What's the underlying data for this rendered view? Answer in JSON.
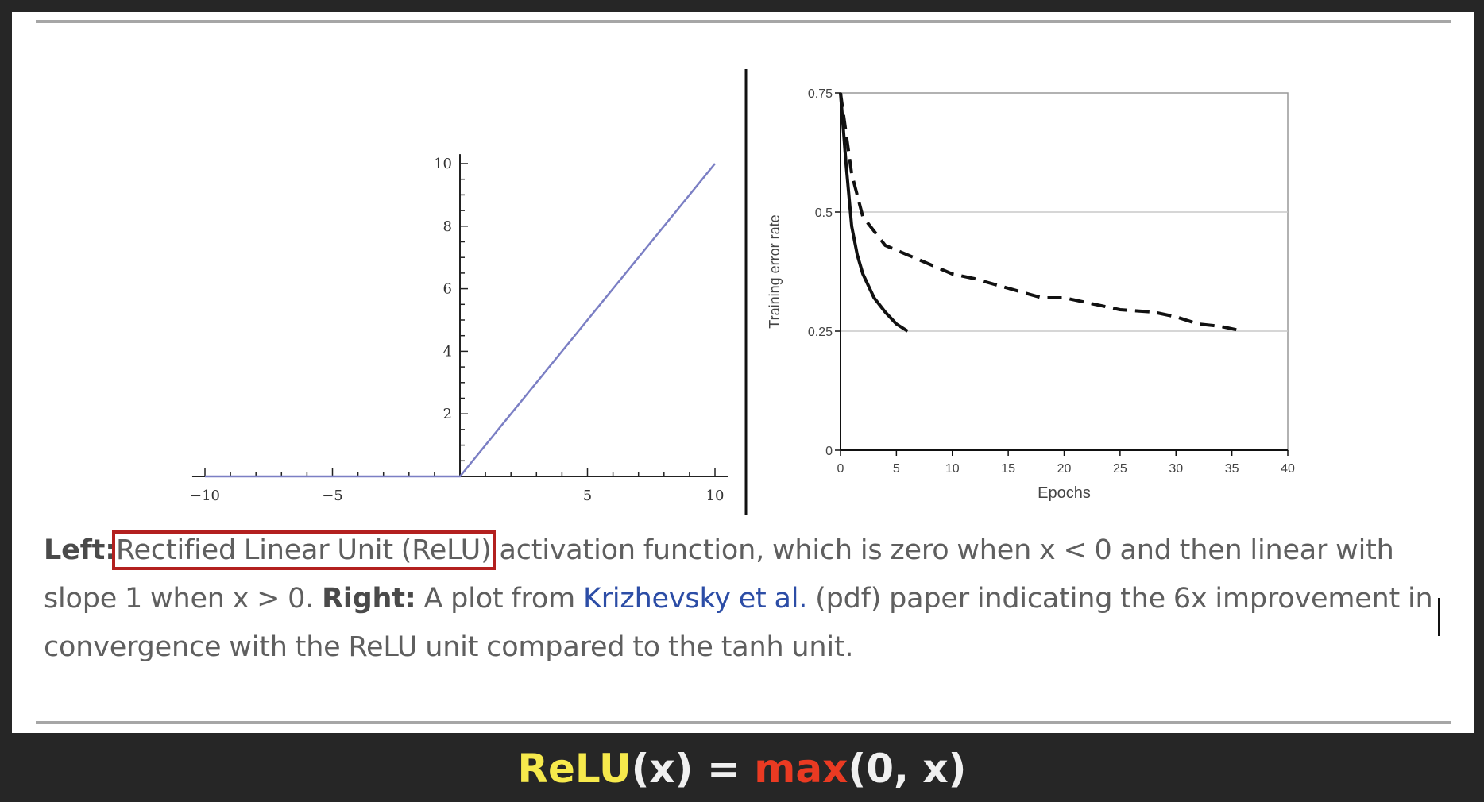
{
  "left_plot": {
    "x_ticks": [
      "−10",
      "−5",
      "5",
      "10"
    ],
    "y_ticks": [
      "2",
      "4",
      "6",
      "8",
      "10"
    ],
    "line_color": "#7b7fc4"
  },
  "chart_data": [
    {
      "type": "line",
      "x": [
        -10,
        0,
        10
      ],
      "series": [
        {
          "values": [
            0,
            0,
            10
          ]
        }
      ],
      "xlim": [
        -10.5,
        10.5
      ],
      "ylim": [
        0,
        10.3
      ],
      "xticks": [
        -10,
        -5,
        5,
        10
      ],
      "yticks": [
        2,
        4,
        6,
        8,
        10
      ]
    },
    {
      "type": "line",
      "xlabel": "Epochs",
      "ylabel": "Training error rate",
      "xlim": [
        0,
        40
      ],
      "ylim": [
        0,
        0.75
      ],
      "xticks": [
        0,
        5,
        10,
        15,
        20,
        25,
        30,
        35,
        40
      ],
      "yticks": [
        "0",
        "0.25",
        "0.5",
        "0.75"
      ],
      "grid": "horizontal at 0.25 and 0.5",
      "series": [
        {
          "style": "solid",
          "x": [
            0,
            0.5,
            1,
            1.5,
            2,
            3,
            4,
            5,
            6
          ],
          "values": [
            0.75,
            0.6,
            0.47,
            0.41,
            0.37,
            0.32,
            0.29,
            0.265,
            0.25
          ]
        },
        {
          "style": "dashed",
          "x": [
            0,
            1,
            2,
            4,
            6,
            8,
            10,
            12,
            15,
            18,
            20,
            22,
            25,
            28,
            30,
            32,
            34,
            36
          ],
          "values": [
            0.75,
            0.58,
            0.49,
            0.43,
            0.41,
            0.39,
            0.37,
            0.36,
            0.34,
            0.32,
            0.32,
            0.31,
            0.295,
            0.29,
            0.28,
            0.265,
            0.26,
            0.25
          ]
        }
      ]
    }
  ],
  "caption": {
    "left_label": "Left:",
    "highlight": "Rectified Linear Unit (ReLU)",
    "text1": " activation function, which is zero when x < 0 and then linear with slope 1 when x > 0. ",
    "right_label": "Right:",
    "text2": " A plot from ",
    "link": "Krizhevsky et al.",
    "text3": " (pdf) paper indicating the 6x improvement in convergence with the ReLU unit compared to the tanh unit."
  },
  "formula": {
    "fn": "ReLU",
    "arg": "(x) = ",
    "op": "max",
    "args": "(0, x)"
  },
  "colors": {
    "background": "#262626",
    "highlight_box": "#b3201f",
    "link": "#2c4da6",
    "formula_fn": "#f6e94c",
    "formula_op": "#ea3a22"
  }
}
